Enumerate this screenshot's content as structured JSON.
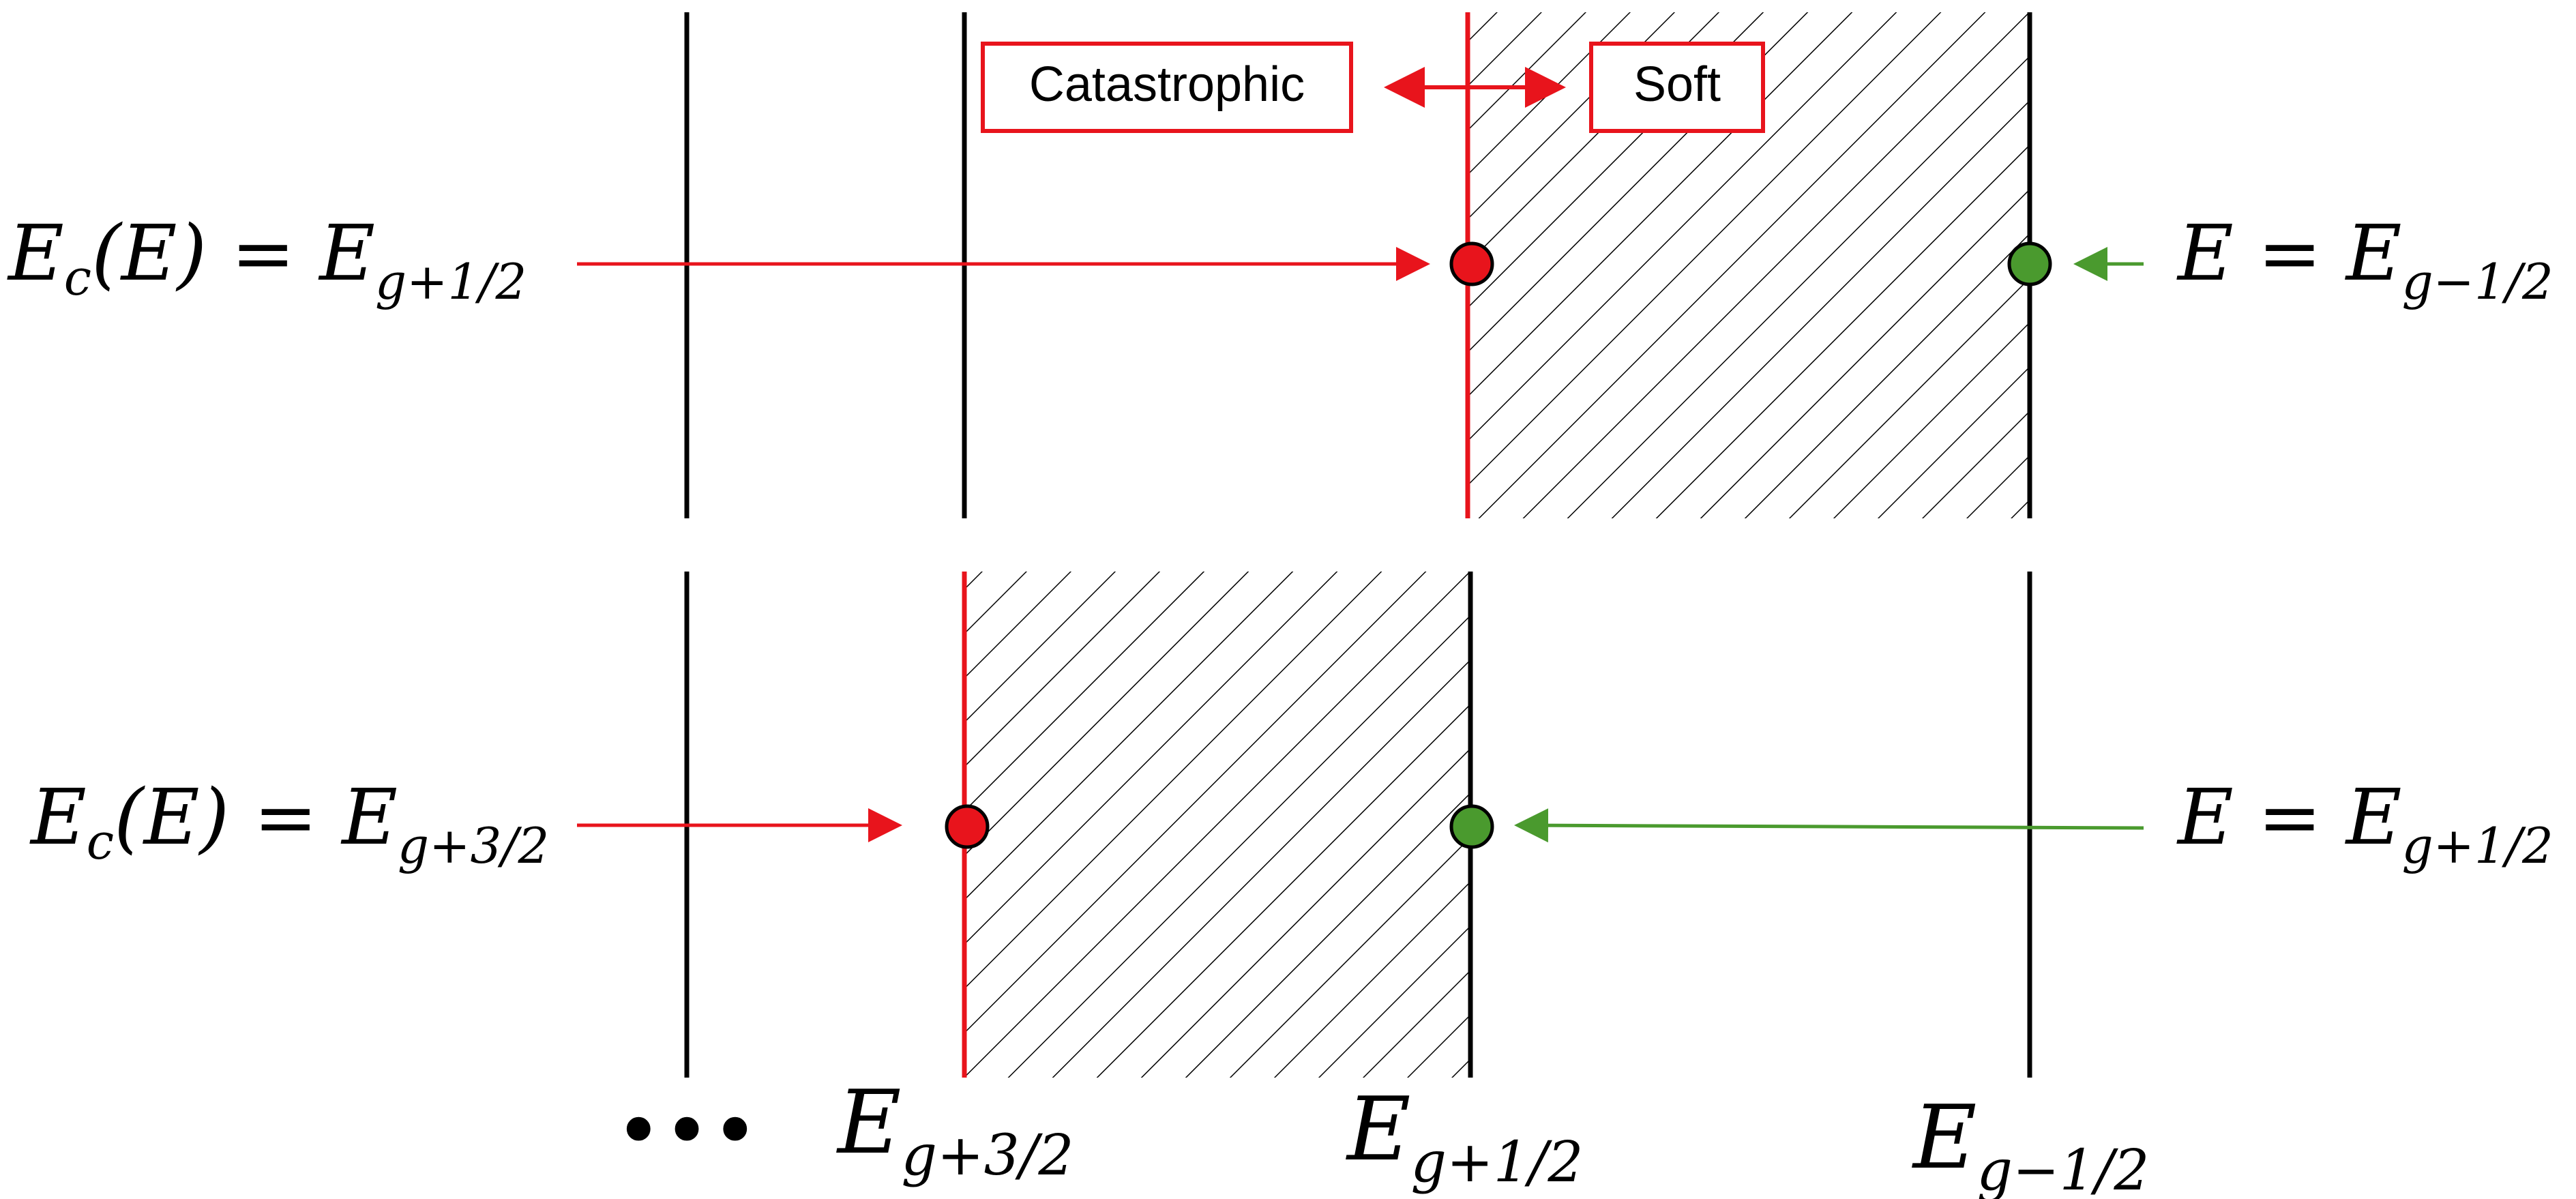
{
  "colors": {
    "red": "#e8141c",
    "green": "#4a9a2e",
    "line": "#000000"
  },
  "legend": {
    "catastrophic": "Catastrophic",
    "soft": "Soft"
  },
  "rows": [
    {
      "left_label": {
        "main": "E",
        "sub": "c",
        "mid": "(E) = E",
        "idx": "g+1/2"
      },
      "right_label": {
        "main": "E = E",
        "idx": "g−1/2"
      }
    },
    {
      "left_label": {
        "main": "E",
        "sub": "c",
        "mid": "(E) = E",
        "idx": "g+3/2"
      },
      "right_label": {
        "main": "E = E",
        "idx": "g+1/2"
      }
    }
  ],
  "bottom_labels": [
    {
      "main": "E",
      "idx": "g+3/2"
    },
    {
      "main": "E",
      "idx": "g+1/2"
    },
    {
      "main": "E",
      "idx": "g−1/2"
    }
  ],
  "ellipsis": "•••"
}
